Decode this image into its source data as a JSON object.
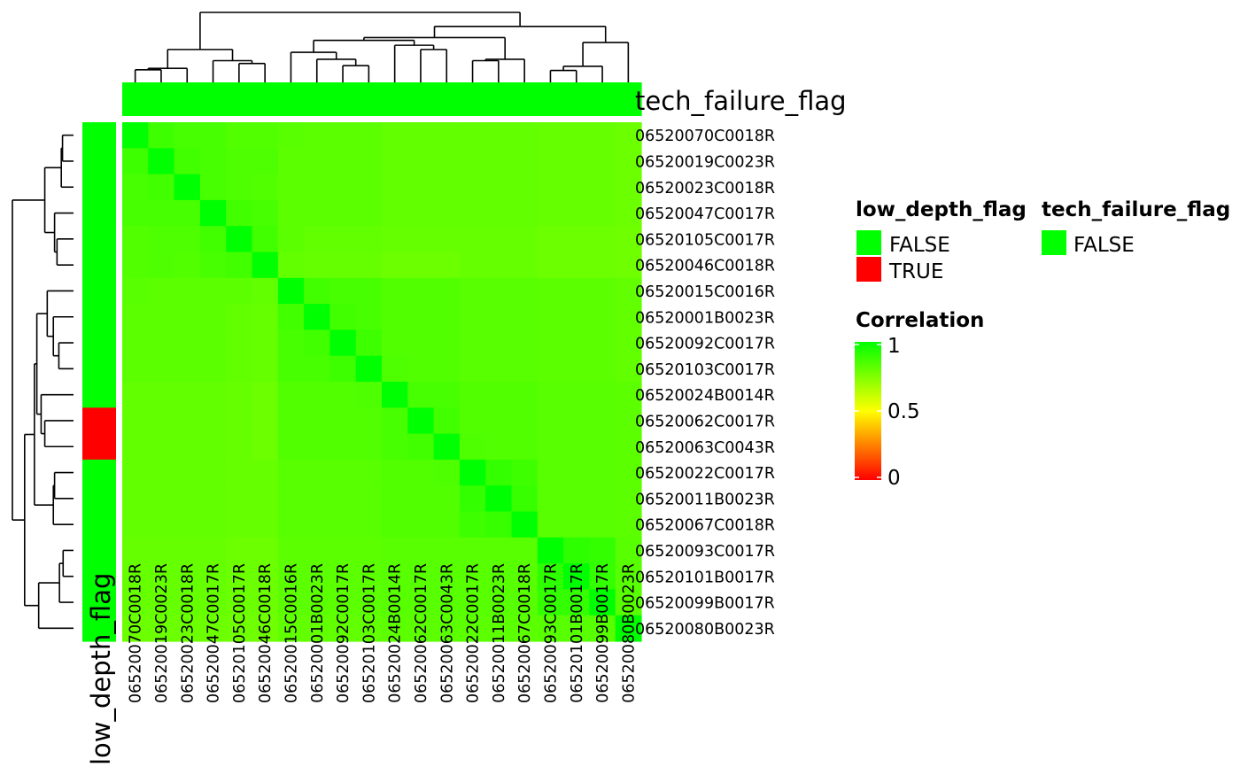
{
  "chart_data": {
    "type": "heatmap",
    "samples": [
      "06520070C0018R",
      "06520019C0023R",
      "06520023C0018R",
      "06520047C0017R",
      "06520105C0017R",
      "06520046C0018R",
      "06520015C0016R",
      "06520001B0023R",
      "06520092C0017R",
      "06520103C0017R",
      "06520024B0014R",
      "06520062C0017R",
      "06520063C0043R",
      "06520022C0017R",
      "06520011B0023R",
      "06520067C0018R",
      "06520093C0017R",
      "06520101B0017R",
      "06520099B0017R",
      "06520080B0023R"
    ],
    "values": [
      [
        1.0,
        0.88,
        0.86,
        0.86,
        0.84,
        0.84,
        0.83,
        0.82,
        0.82,
        0.82,
        0.81,
        0.81,
        0.81,
        0.81,
        0.81,
        0.81,
        0.8,
        0.8,
        0.8,
        0.79
      ],
      [
        0.88,
        1.0,
        0.87,
        0.86,
        0.85,
        0.85,
        0.82,
        0.82,
        0.82,
        0.82,
        0.81,
        0.81,
        0.81,
        0.81,
        0.81,
        0.81,
        0.8,
        0.8,
        0.8,
        0.79
      ],
      [
        0.86,
        0.87,
        1.0,
        0.86,
        0.85,
        0.84,
        0.82,
        0.82,
        0.82,
        0.82,
        0.81,
        0.81,
        0.81,
        0.81,
        0.81,
        0.81,
        0.8,
        0.8,
        0.8,
        0.79
      ],
      [
        0.86,
        0.86,
        0.86,
        1.0,
        0.87,
        0.86,
        0.82,
        0.82,
        0.82,
        0.82,
        0.81,
        0.81,
        0.81,
        0.81,
        0.81,
        0.81,
        0.8,
        0.8,
        0.8,
        0.79
      ],
      [
        0.84,
        0.85,
        0.85,
        0.87,
        1.0,
        0.87,
        0.82,
        0.81,
        0.81,
        0.81,
        0.8,
        0.8,
        0.8,
        0.8,
        0.8,
        0.8,
        0.79,
        0.79,
        0.79,
        0.78
      ],
      [
        0.84,
        0.85,
        0.84,
        0.86,
        0.87,
        1.0,
        0.81,
        0.8,
        0.8,
        0.8,
        0.79,
        0.79,
        0.79,
        0.8,
        0.8,
        0.8,
        0.79,
        0.79,
        0.79,
        0.78
      ],
      [
        0.83,
        0.82,
        0.82,
        0.82,
        0.82,
        0.81,
        1.0,
        0.87,
        0.86,
        0.86,
        0.84,
        0.84,
        0.84,
        0.83,
        0.83,
        0.83,
        0.82,
        0.82,
        0.82,
        0.81
      ],
      [
        0.82,
        0.82,
        0.82,
        0.82,
        0.81,
        0.8,
        0.87,
        1.0,
        0.87,
        0.86,
        0.84,
        0.84,
        0.84,
        0.83,
        0.83,
        0.83,
        0.82,
        0.82,
        0.82,
        0.81
      ],
      [
        0.82,
        0.82,
        0.82,
        0.82,
        0.81,
        0.8,
        0.86,
        0.87,
        1.0,
        0.88,
        0.84,
        0.84,
        0.84,
        0.83,
        0.83,
        0.83,
        0.82,
        0.82,
        0.82,
        0.81
      ],
      [
        0.82,
        0.82,
        0.82,
        0.82,
        0.81,
        0.8,
        0.86,
        0.86,
        0.88,
        1.0,
        0.85,
        0.84,
        0.84,
        0.83,
        0.83,
        0.83,
        0.82,
        0.82,
        0.82,
        0.81
      ],
      [
        0.81,
        0.81,
        0.81,
        0.81,
        0.8,
        0.79,
        0.84,
        0.84,
        0.84,
        0.85,
        1.0,
        0.86,
        0.86,
        0.84,
        0.84,
        0.84,
        0.83,
        0.83,
        0.83,
        0.82
      ],
      [
        0.81,
        0.81,
        0.81,
        0.81,
        0.8,
        0.79,
        0.84,
        0.84,
        0.84,
        0.84,
        0.86,
        1.0,
        0.87,
        0.84,
        0.84,
        0.84,
        0.83,
        0.83,
        0.83,
        0.82
      ],
      [
        0.81,
        0.81,
        0.81,
        0.81,
        0.8,
        0.79,
        0.84,
        0.84,
        0.84,
        0.84,
        0.86,
        0.87,
        1.0,
        0.85,
        0.84,
        0.84,
        0.83,
        0.83,
        0.83,
        0.82
      ],
      [
        0.81,
        0.81,
        0.81,
        0.81,
        0.8,
        0.8,
        0.83,
        0.83,
        0.83,
        0.83,
        0.84,
        0.84,
        0.85,
        1.0,
        0.9,
        0.88,
        0.83,
        0.83,
        0.83,
        0.82
      ],
      [
        0.81,
        0.81,
        0.81,
        0.81,
        0.8,
        0.8,
        0.83,
        0.83,
        0.83,
        0.83,
        0.84,
        0.84,
        0.84,
        0.9,
        1.0,
        0.89,
        0.83,
        0.83,
        0.83,
        0.82
      ],
      [
        0.81,
        0.81,
        0.81,
        0.81,
        0.8,
        0.8,
        0.83,
        0.83,
        0.83,
        0.83,
        0.84,
        0.84,
        0.84,
        0.88,
        0.89,
        1.0,
        0.83,
        0.83,
        0.83,
        0.82
      ],
      [
        0.8,
        0.8,
        0.8,
        0.8,
        0.79,
        0.79,
        0.82,
        0.82,
        0.82,
        0.82,
        0.83,
        0.83,
        0.83,
        0.83,
        0.83,
        0.83,
        1.0,
        0.91,
        0.9,
        0.83
      ],
      [
        0.8,
        0.8,
        0.8,
        0.8,
        0.79,
        0.79,
        0.82,
        0.82,
        0.82,
        0.82,
        0.83,
        0.83,
        0.83,
        0.83,
        0.83,
        0.83,
        0.91,
        1.0,
        0.9,
        0.83
      ],
      [
        0.8,
        0.8,
        0.8,
        0.8,
        0.79,
        0.79,
        0.82,
        0.82,
        0.82,
        0.82,
        0.83,
        0.83,
        0.83,
        0.83,
        0.83,
        0.83,
        0.9,
        0.9,
        1.0,
        0.83
      ],
      [
        0.79,
        0.79,
        0.79,
        0.79,
        0.78,
        0.78,
        0.81,
        0.81,
        0.81,
        0.81,
        0.82,
        0.82,
        0.82,
        0.82,
        0.82,
        0.82,
        0.83,
        0.83,
        0.83,
        1.0
      ]
    ],
    "col_annotation": {
      "title": "tech_failure_flag",
      "values": [
        "FALSE",
        "FALSE",
        "FALSE",
        "FALSE",
        "FALSE",
        "FALSE",
        "FALSE",
        "FALSE",
        "FALSE",
        "FALSE",
        "FALSE",
        "FALSE",
        "FALSE",
        "FALSE",
        "FALSE",
        "FALSE",
        "FALSE",
        "FALSE",
        "FALSE",
        "FALSE"
      ]
    },
    "row_annotation": {
      "title": "low_depth_flag",
      "values": [
        "FALSE",
        "FALSE",
        "FALSE",
        "FALSE",
        "FALSE",
        "FALSE",
        "FALSE",
        "FALSE",
        "FALSE",
        "FALSE",
        "FALSE",
        "TRUE",
        "TRUE",
        "FALSE",
        "FALSE",
        "FALSE",
        "FALSE",
        "FALSE",
        "FALSE",
        "FALSE"
      ]
    },
    "legends": {
      "low_depth_flag": {
        "title": "low_depth_flag",
        "items": [
          {
            "label": "FALSE",
            "color": "#00ff00"
          },
          {
            "label": "TRUE",
            "color": "#ff0000"
          }
        ]
      },
      "tech_failure_flag": {
        "title": "tech_failure_flag",
        "items": [
          {
            "label": "FALSE",
            "color": "#00ff00"
          }
        ]
      },
      "correlation": {
        "title": "Correlation",
        "ticks": [
          "1",
          "0.5",
          "0"
        ],
        "tick_values": [
          1,
          0.5,
          0
        ]
      }
    },
    "color_scale": {
      "min": 0,
      "mid": 0.5,
      "max": 1,
      "colors": [
        "#ff0000",
        "#ffff00",
        "#00ff00"
      ]
    }
  }
}
